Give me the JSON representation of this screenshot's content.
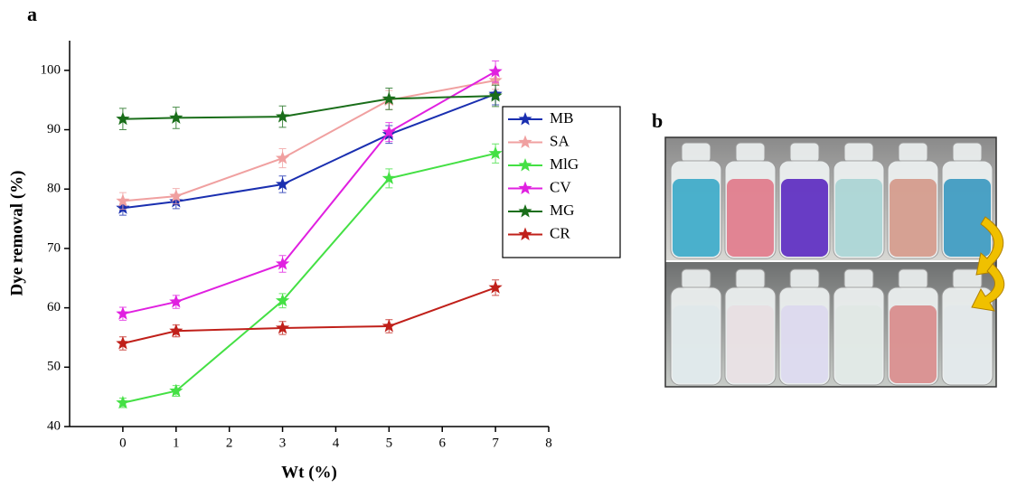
{
  "chart_data": {
    "type": "line",
    "panel_label": "a",
    "x_label": "Wt (%)",
    "y_label": "Dye removal (%)",
    "x": [
      0,
      1,
      3,
      5,
      7
    ],
    "xlim": [
      -1,
      8
    ],
    "xticks": [
      0,
      1,
      2,
      3,
      4,
      5,
      6,
      7,
      8
    ],
    "ylim": [
      40,
      105
    ],
    "yticks": [
      40,
      50,
      60,
      70,
      80,
      90,
      100
    ],
    "grid": false,
    "legend": "right",
    "series": [
      {
        "name": "MB",
        "color": "#1a2fb0",
        "values": [
          76.8,
          77.9,
          80.8,
          89.2,
          96.0
        ],
        "errors": [
          1.2,
          1.2,
          1.4,
          1.5,
          1.8
        ]
      },
      {
        "name": "SA",
        "color": "#f0a0a0",
        "values": [
          78.0,
          78.8,
          85.2,
          95.0,
          98.3
        ],
        "errors": [
          1.4,
          1.3,
          1.6,
          1.6,
          1.5
        ]
      },
      {
        "name": "MlG",
        "color": "#44e044",
        "values": [
          44.0,
          46.0,
          61.2,
          81.8,
          86.0
        ],
        "errors": [
          0.8,
          0.9,
          1.2,
          1.6,
          1.6
        ]
      },
      {
        "name": "CV",
        "color": "#e020e0",
        "values": [
          59.0,
          61.0,
          67.4,
          89.6,
          99.8
        ],
        "errors": [
          1.1,
          1.1,
          1.4,
          1.6,
          1.8
        ]
      },
      {
        "name": "MG",
        "color": "#1a6e1a",
        "values": [
          91.8,
          92.0,
          92.2,
          95.2,
          95.7
        ],
        "errors": [
          1.8,
          1.8,
          1.8,
          1.8,
          1.8
        ]
      },
      {
        "name": "CR",
        "color": "#c0201a",
        "values": [
          54.0,
          56.1,
          56.6,
          56.9,
          63.4
        ],
        "errors": [
          1.1,
          1.0,
          1.1,
          1.1,
          1.3
        ]
      }
    ]
  },
  "photo": {
    "label": "b"
  }
}
